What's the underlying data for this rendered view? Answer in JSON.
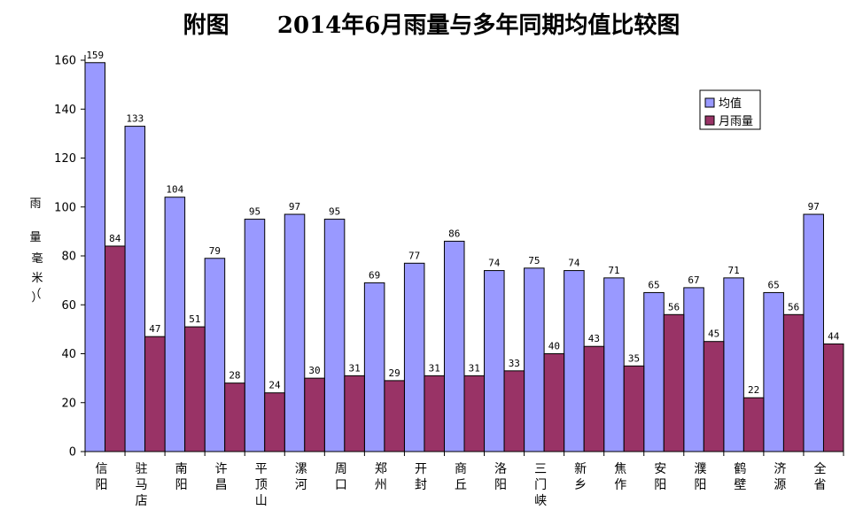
{
  "chart_data": {
    "type": "bar",
    "title": "附图      2014年6月雨量与多年同期均值比较图",
    "ylabel": "雨量（毫米）",
    "ylim": [
      0,
      160
    ],
    "yticks": [
      0,
      20,
      40,
      60,
      80,
      100,
      120,
      140,
      160
    ],
    "grid": false,
    "legend_position": "top-right",
    "categories": [
      "信阳",
      "驻马店",
      "南阳",
      "许昌",
      "平顶山",
      "漯河",
      "周口",
      "郑州",
      "开封",
      "商丘",
      "洛阳",
      "三门峡",
      "新乡",
      "焦作",
      "安阳",
      "濮阳",
      "鹤壁",
      "济源",
      "全省"
    ],
    "series": [
      {
        "name": "均值",
        "color": "#9999ff",
        "values": [
          159,
          133,
          104,
          79,
          95,
          97,
          95,
          69,
          77,
          86,
          74,
          75,
          74,
          71,
          65,
          67,
          71,
          65,
          97
        ]
      },
      {
        "name": "月雨量",
        "color": "#993366",
        "values": [
          84,
          47,
          51,
          28,
          24,
          30,
          31,
          29,
          31,
          31,
          33,
          40,
          43,
          35,
          56,
          45,
          22,
          56,
          44
        ]
      }
    ]
  }
}
